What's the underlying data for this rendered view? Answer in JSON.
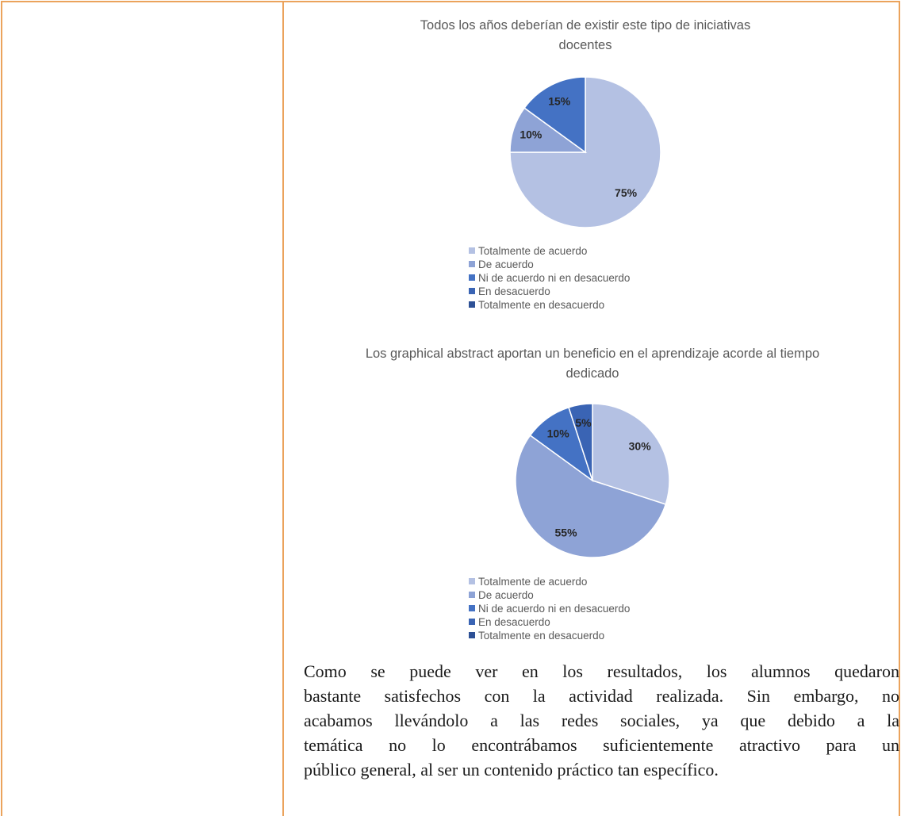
{
  "chart_data": [
    {
      "type": "pie",
      "title": "Todos los años deberían de existir este tipo de iniciativas docentes",
      "categories": [
        "Totalmente de acuerdo",
        "De acuerdo",
        "Ni de acuerdo ni en desacuerdo",
        "En desacuerdo",
        "Totalmente en desacuerdo"
      ],
      "values": [
        75,
        10,
        15,
        0,
        0
      ],
      "value_labels": [
        "75%",
        "10%",
        "15%",
        null,
        null
      ],
      "colors": [
        "#b4c1e3",
        "#8ea3d6",
        "#4472c4",
        "#3a64b4",
        "#2e5196"
      ],
      "legend": "bottom"
    },
    {
      "type": "pie",
      "title": "Los graphical abstract aportan un beneficio en el aprendizaje acorde al tiempo dedicado",
      "categories": [
        "Totalmente de acuerdo",
        "De acuerdo",
        "Ni de acuerdo ni en desacuerdo",
        "En desacuerdo",
        "Totalmente en desacuerdo"
      ],
      "values": [
        30,
        55,
        10,
        5,
        0
      ],
      "value_labels": [
        "30%",
        "55%",
        "10%",
        "5%",
        null
      ],
      "colors": [
        "#b4c1e3",
        "#8ea3d6",
        "#4472c4",
        "#3a64b4",
        "#2e5196"
      ],
      "legend": "bottom"
    }
  ],
  "paragraph": {
    "lines": [
      "Como se puede ver en los resultados, los alumnos quedaron",
      "bastante satisfechos con la actividad realizada. Sin embargo, no",
      "acabamos llevándolo a las redes sociales, ya que debido a la",
      "temática no lo encontrábamos suficientemente atractivo para un",
      "público general, al ser un contenido práctico tan específico."
    ]
  }
}
